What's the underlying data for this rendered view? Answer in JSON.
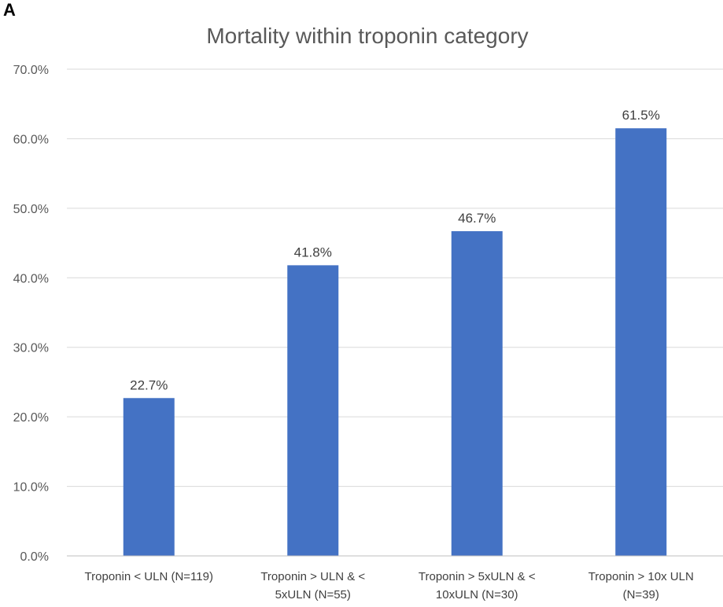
{
  "panel_label": "A",
  "chart_data": {
    "type": "bar",
    "title": "Mortality within troponin category",
    "xlabel": "",
    "ylabel": "",
    "categories": [
      [
        "Troponin < ULN (N=119)"
      ],
      [
        "Troponin > ULN & <",
        "5xULN (N=55)"
      ],
      [
        "Troponin > 5xULN & <",
        "10xULN (N=30)"
      ],
      [
        "Troponin > 10x ULN",
        "(N=39)"
      ]
    ],
    "values": [
      22.7,
      41.8,
      46.7,
      61.5
    ],
    "data_labels": [
      "22.7%",
      "41.8%",
      "46.7%",
      "61.5%"
    ],
    "ylim": [
      0,
      70
    ],
    "yticks": [
      "0.0%",
      "10.0%",
      "20.0%",
      "30.0%",
      "40.0%",
      "50.0%",
      "60.0%",
      "70.0%"
    ],
    "grid": true,
    "legend": "none",
    "colors": {
      "bar": "#4472C4",
      "grid": "#D9D9D9",
      "axis": "#BFBFBF"
    }
  }
}
